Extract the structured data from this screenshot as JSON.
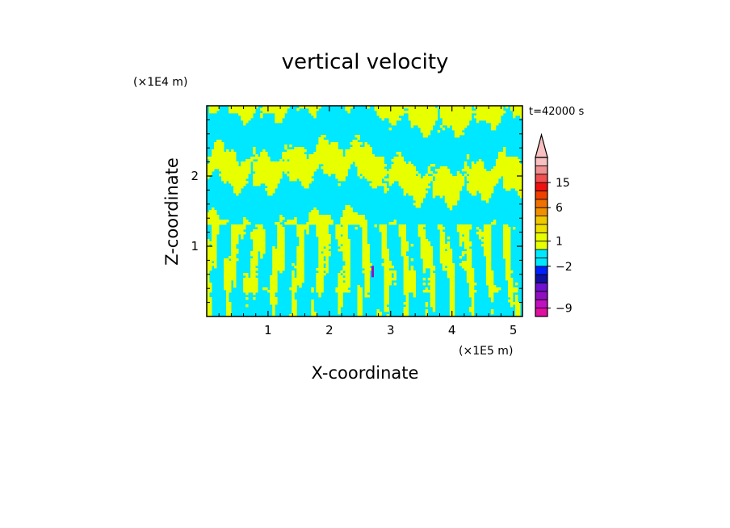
{
  "chart_data": {
    "type": "heatmap",
    "title": "vertical velocity",
    "xlabel": "X-coordinate",
    "ylabel": "Z-coordinate",
    "x_unit": "(×1E5 m)",
    "y_unit": "(×1E4 m)",
    "time_label": "t=42000 s",
    "xlim": [
      0,
      5.15
    ],
    "ylim": [
      0,
      3
    ],
    "xticks": [
      "1",
      "2",
      "3",
      "4",
      "5"
    ],
    "yticks": [
      "1",
      "2"
    ],
    "colorbar": {
      "labels": [
        "15",
        "6",
        "1",
        "−2",
        "−9"
      ],
      "levels": [
        {
          "color": "#e010a0"
        },
        {
          "color": "#c010c0"
        },
        {
          "color": "#9010c0"
        },
        {
          "color": "#7010d0"
        },
        {
          "color": "#1010a0"
        },
        {
          "color": "#0020ff"
        },
        {
          "color": "#00e8ff"
        },
        {
          "color": "#00e8ff"
        },
        {
          "color": "#e8ff00"
        },
        {
          "color": "#e8ff00"
        },
        {
          "color": "#f0e000"
        },
        {
          "color": "#f0c800"
        },
        {
          "color": "#f09000"
        },
        {
          "color": "#f07000"
        },
        {
          "color": "#f04000"
        },
        {
          "color": "#f01010"
        },
        {
          "color": "#f05050"
        },
        {
          "color": "#f09090"
        },
        {
          "color": "#f8c0c0"
        }
      ],
      "extend_top": true
    },
    "field_colors": {
      "background": "#00e8ff",
      "updraft": "#e8ff00",
      "downdraft_core": "#9010c0"
    },
    "grid": false
  }
}
